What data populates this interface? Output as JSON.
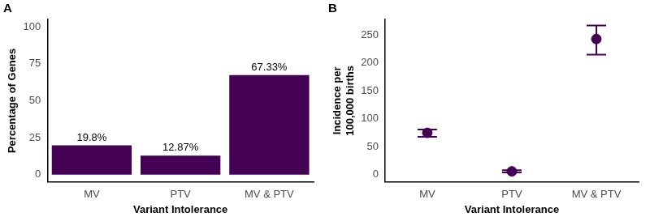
{
  "chart_data": [
    {
      "type": "bar",
      "title": "A",
      "categories": [
        "MV",
        "PTV",
        "MV & PTV"
      ],
      "values": [
        19.8,
        12.87,
        67.33
      ],
      "value_labels": [
        "19.8%",
        "12.87%",
        "67.33%"
      ],
      "data_labels": true,
      "color": "#440154",
      "x_label": "Variant Intolerance",
      "y_label": "Percentage of Genes",
      "ylim": [
        -5,
        105
      ],
      "yticks": [
        0,
        25,
        50,
        75,
        100
      ],
      "grid": false
    },
    {
      "type": "scatter",
      "title": "B",
      "categories": [
        "MV",
        "PTV",
        "MV & PTV"
      ],
      "values": [
        75,
        6,
        243
      ],
      "lower": [
        68,
        4,
        215
      ],
      "upper": [
        81,
        8,
        267
      ],
      "color": "#440154",
      "x_label": "Variant Intolerance",
      "y_label": "Incidence per\n100,000 births",
      "ylim": [
        -13,
        278
      ],
      "yticks": [
        0,
        50,
        100,
        150,
        200,
        250
      ],
      "grid": false
    }
  ]
}
